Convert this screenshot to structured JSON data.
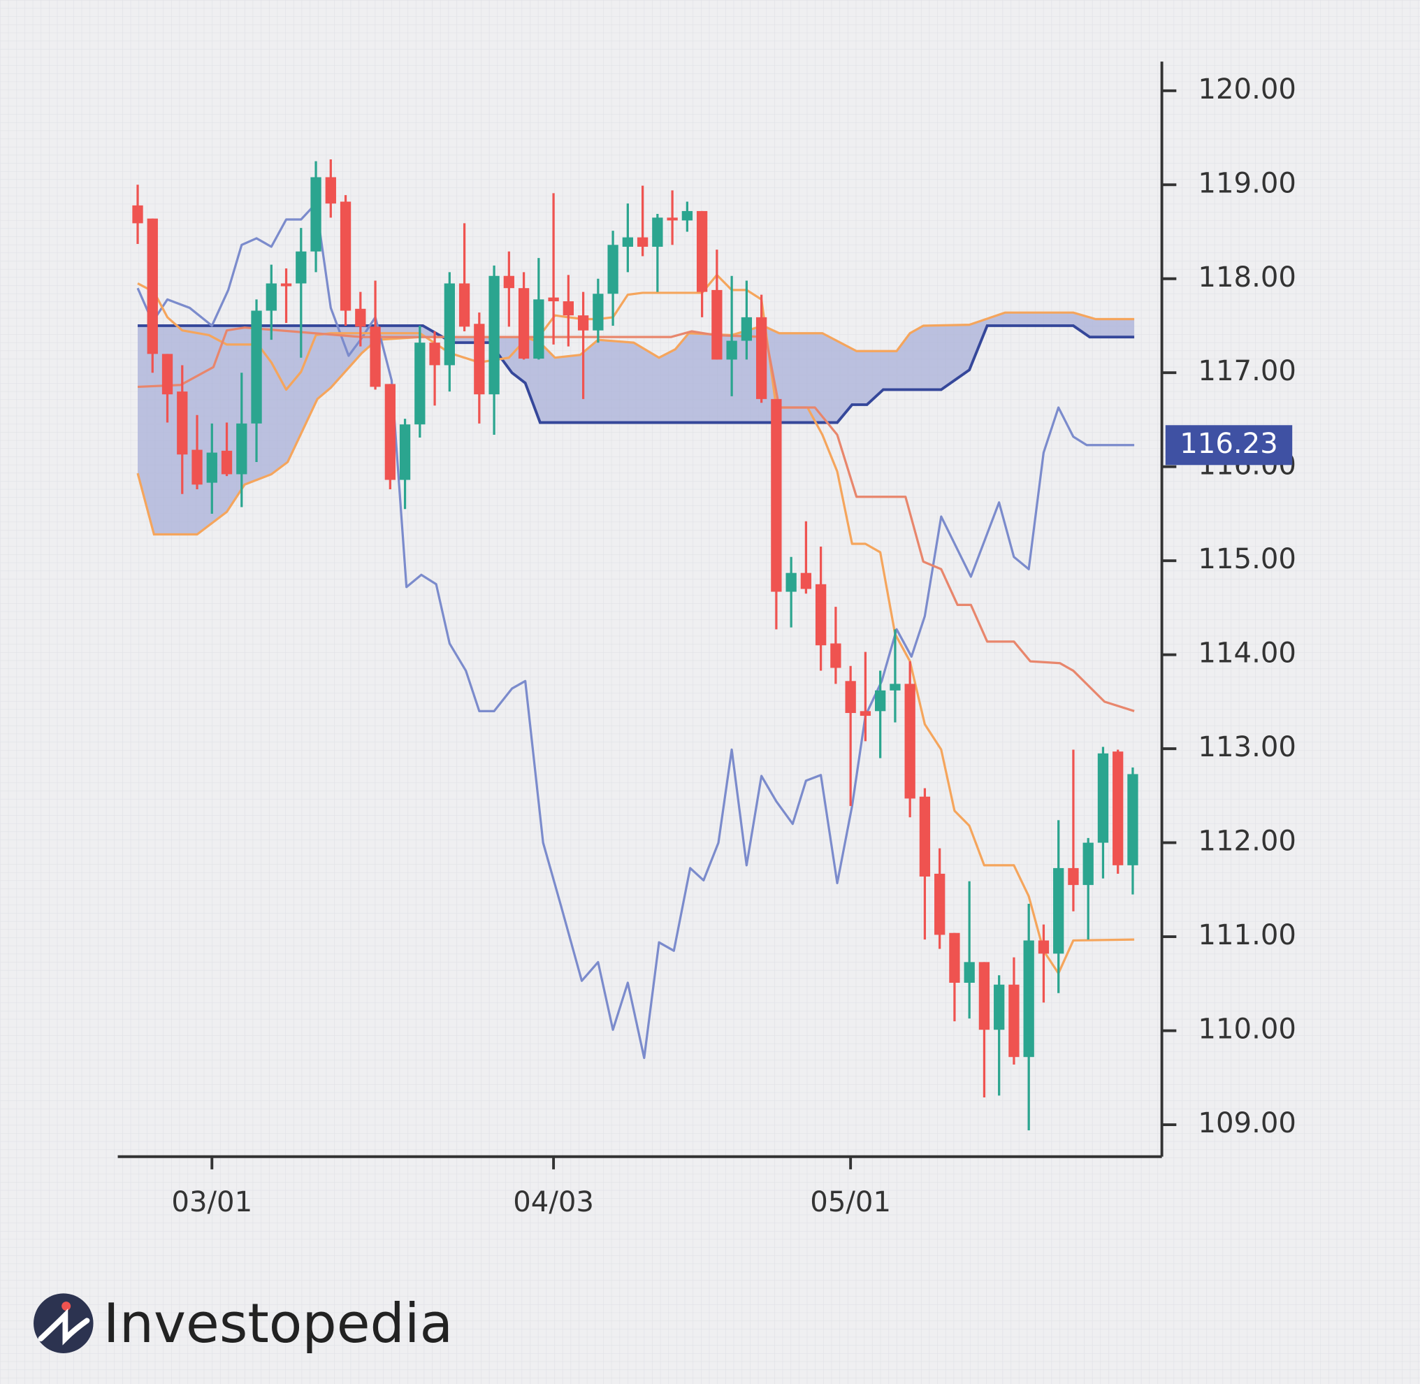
{
  "chart_data": {
    "type": "candlestick",
    "x": [
      0,
      1,
      2,
      3,
      4,
      5,
      6,
      7,
      8,
      9,
      10,
      11,
      12,
      13,
      14,
      15,
      16,
      17,
      18,
      19,
      20,
      21,
      22,
      23,
      24,
      25,
      26,
      27,
      28,
      29,
      30,
      31,
      32,
      33,
      34,
      35,
      36,
      37,
      38,
      39,
      40,
      41,
      42,
      43,
      44,
      45,
      46,
      47,
      48,
      49,
      50,
      51,
      52,
      53,
      54,
      55,
      56,
      57,
      58,
      59,
      60,
      61,
      62,
      63,
      64,
      65,
      66,
      67
    ],
    "open": [
      118.78,
      118.64,
      117.2,
      116.8,
      116.18,
      115.83,
      116.17,
      115.92,
      116.46,
      117.66,
      117.95,
      117.95,
      118.29,
      119.08,
      118.82,
      117.68,
      117.49,
      116.88,
      115.86,
      116.45,
      117.32,
      117.08,
      117.95,
      117.52,
      116.77,
      118.03,
      117.9,
      117.15,
      117.8,
      117.76,
      117.61,
      117.45,
      117.84,
      118.34,
      118.44,
      118.34,
      118.65,
      118.62,
      118.72,
      117.88,
      117.14,
      117.34,
      117.59,
      116.72,
      114.67,
      114.87,
      114.75,
      114.12,
      113.72,
      113.4,
      113.4,
      113.62,
      113.69,
      112.49,
      111.67,
      111.04,
      110.51,
      110.73,
      110.01,
      110.49,
      109.72,
      110.96,
      110.82,
      111.73,
      111.55,
      112.0,
      112.97,
      111.76
    ],
    "high": [
      119.0,
      118.64,
      117.2,
      117.08,
      116.55,
      116.46,
      116.47,
      117.0,
      117.78,
      118.15,
      118.11,
      118.54,
      119.25,
      119.27,
      118.89,
      117.86,
      117.98,
      116.88,
      116.51,
      117.5,
      117.44,
      118.07,
      118.59,
      117.64,
      118.14,
      118.29,
      118.07,
      118.22,
      118.91,
      118.04,
      117.86,
      118.0,
      118.51,
      118.8,
      118.99,
      118.69,
      118.94,
      118.82,
      118.72,
      118.31,
      118.03,
      117.98,
      117.83,
      116.72,
      115.04,
      115.42,
      115.15,
      114.51,
      113.88,
      114.03,
      113.83,
      114.27,
      113.93,
      112.58,
      111.94,
      111.04,
      111.59,
      110.73,
      110.59,
      110.78,
      111.35,
      111.13,
      112.24,
      112.99,
      112.05,
      113.02,
      112.99,
      112.8
    ],
    "low": [
      118.37,
      117.0,
      116.47,
      115.71,
      115.76,
      115.5,
      115.9,
      115.57,
      116.05,
      117.35,
      117.53,
      117.16,
      118.07,
      118.65,
      117.5,
      117.28,
      116.82,
      115.76,
      115.55,
      116.31,
      116.65,
      116.8,
      117.44,
      116.46,
      116.34,
      117.49,
      117.14,
      117.14,
      117.3,
      117.28,
      116.72,
      117.32,
      117.5,
      118.07,
      118.24,
      117.86,
      118.36,
      118.5,
      117.59,
      117.14,
      116.75,
      117.14,
      116.68,
      114.27,
      114.29,
      114.65,
      113.83,
      113.69,
      112.39,
      113.08,
      112.9,
      113.28,
      112.27,
      110.97,
      110.87,
      110.1,
      110.13,
      109.29,
      109.31,
      109.64,
      108.94,
      110.3,
      110.4,
      111.27,
      110.97,
      111.62,
      111.67,
      111.45
    ],
    "close": [
      118.59,
      117.2,
      116.77,
      116.13,
      115.81,
      116.15,
      115.92,
      116.46,
      117.66,
      117.95,
      117.92,
      118.29,
      119.08,
      118.8,
      117.66,
      117.49,
      116.85,
      115.86,
      116.45,
      117.32,
      117.08,
      117.95,
      117.49,
      116.77,
      118.03,
      117.9,
      117.15,
      117.78,
      117.76,
      117.61,
      117.45,
      117.84,
      118.36,
      118.44,
      118.34,
      118.65,
      118.62,
      118.72,
      117.86,
      117.14,
      117.34,
      117.59,
      116.72,
      114.67,
      114.87,
      114.7,
      114.1,
      113.86,
      113.38,
      113.35,
      113.62,
      113.69,
      112.47,
      111.64,
      111.02,
      110.51,
      110.73,
      110.01,
      110.49,
      109.72,
      110.96,
      110.82,
      111.73,
      111.55,
      112.0,
      112.95,
      111.76,
      112.73
    ],
    "up_color": "#2ba58f",
    "down_color": "#ef5350",
    "cloud": {
      "fill": "#aab0d8",
      "span_a": {
        "color": "#f5a55c",
        "x": [
          0,
          1.1,
          4,
          6,
          7.2,
          9,
          10.1,
          12.1,
          13,
          15.1,
          16.1,
          19.1,
          26.1,
          27.1,
          28.1,
          29.8,
          31,
          33.4,
          35.1,
          36.2,
          37.1,
          40,
          42.1,
          43.2,
          46.1,
          48.4,
          51.1,
          52,
          52.9,
          56,
          58.4,
          63,
          64.5,
          67.1
        ],
        "values": [
          115.93,
          115.28,
          115.28,
          115.52,
          115.81,
          115.92,
          116.05,
          116.72,
          116.84,
          117.21,
          117.35,
          117.38,
          117.38,
          117.32,
          117.16,
          117.19,
          117.35,
          117.32,
          117.16,
          117.25,
          117.42,
          117.4,
          117.5,
          117.42,
          117.42,
          117.23,
          117.23,
          117.42,
          117.5,
          117.51,
          117.64,
          117.64,
          117.57,
          117.57
        ]
      },
      "span_b": {
        "color": "#35479a",
        "x": [
          0,
          19.2,
          21.2,
          23.7,
          25.2,
          26.1,
          27.1,
          47.1,
          48.1,
          49.1,
          50.2,
          54.1,
          56,
          57.2,
          63,
          64.1,
          67.1
        ],
        "values": [
          117.5,
          117.5,
          117.32,
          117.32,
          117.0,
          116.89,
          116.47,
          116.47,
          116.66,
          116.66,
          116.82,
          116.82,
          117.03,
          117.5,
          117.5,
          117.38,
          117.38
        ]
      }
    },
    "lines": [
      {
        "color": "#7b8bcc",
        "x": [
          0,
          1,
          2,
          3.5,
          5,
          6.1,
          7,
          8,
          9,
          10,
          11,
          12,
          13,
          14.2,
          15,
          16,
          17.1,
          18.1,
          19.1,
          20.1,
          21,
          22.1,
          23,
          24,
          25.2,
          26.1,
          27.3,
          28.5,
          29.9,
          31,
          32,
          33,
          34.1,
          35.1,
          36.1,
          37.2,
          38.1,
          39.1,
          40,
          41,
          42,
          43,
          44.1,
          45,
          46,
          47.1,
          48.1,
          49,
          50.1,
          51.1,
          52.1,
          53,
          54.1,
          56.1,
          58,
          59,
          60,
          61,
          62,
          63,
          63.9,
          67.1
        ],
        "values": [
          117.9,
          117.54,
          117.78,
          117.69,
          117.5,
          117.88,
          118.36,
          118.43,
          118.34,
          118.63,
          118.63,
          118.8,
          117.69,
          117.18,
          117.35,
          117.59,
          116.92,
          114.72,
          114.85,
          114.75,
          114.12,
          113.83,
          113.4,
          113.4,
          113.64,
          113.72,
          112.0,
          111.33,
          110.53,
          110.73,
          110.01,
          110.51,
          109.71,
          110.94,
          110.85,
          111.73,
          111.6,
          112.0,
          112.99,
          111.76,
          112.71,
          112.44,
          112.2,
          112.66,
          112.72,
          111.57,
          112.39,
          113.35,
          113.72,
          114.27,
          113.98,
          114.41,
          115.47,
          114.83,
          115.62,
          115.04,
          114.91,
          116.15,
          116.63,
          116.32,
          116.23,
          116.23
        ]
      },
      {
        "color": "#f5a55c",
        "x": [
          0,
          1.1,
          2,
          3,
          4.8,
          6,
          8.1,
          9,
          10,
          11,
          12,
          13,
          15,
          19,
          21,
          23,
          25,
          26.1,
          27.1,
          28.1,
          29,
          30,
          31,
          32,
          33,
          34,
          38,
          39,
          40,
          41,
          42,
          43,
          45.1,
          46.1,
          47.1,
          48.1,
          49,
          50,
          51,
          52,
          53,
          54.1,
          55,
          56,
          57,
          59,
          60,
          61,
          62,
          63,
          67.1
        ],
        "values": [
          117.95,
          117.86,
          117.59,
          117.45,
          117.4,
          117.3,
          117.3,
          117.11,
          116.82,
          117.01,
          117.4,
          117.42,
          117.42,
          117.42,
          117.21,
          117.11,
          117.16,
          117.35,
          117.4,
          117.61,
          117.59,
          117.57,
          117.57,
          117.59,
          117.83,
          117.85,
          117.85,
          118.04,
          117.88,
          117.88,
          117.78,
          116.63,
          116.63,
          116.34,
          115.95,
          115.18,
          115.18,
          115.09,
          114.22,
          113.93,
          113.26,
          112.99,
          112.34,
          112.18,
          111.76,
          111.76,
          111.43,
          110.85,
          110.61,
          110.96,
          110.97
        ]
      },
      {
        "color": "#e8866c",
        "x": [
          0,
          2.9,
          5.1,
          6,
          7.2,
          15.1,
          35.9,
          37.3,
          38.9,
          42.3,
          43.2,
          45.6,
          47.1,
          48.4,
          51.7,
          52.9,
          54.1,
          55.2,
          56.1,
          57.2,
          59,
          60.1,
          62.1,
          63,
          65.1,
          67.1
        ],
        "values": [
          116.85,
          116.87,
          117.06,
          117.45,
          117.48,
          117.38,
          117.38,
          117.44,
          117.4,
          117.38,
          116.63,
          116.63,
          116.34,
          115.68,
          115.68,
          114.99,
          114.91,
          114.53,
          114.53,
          114.14,
          114.14,
          113.93,
          113.91,
          113.83,
          113.5,
          113.4
        ]
      }
    ],
    "last_price": 116.23,
    "last_price_color": "#3f51a3",
    "xlim": [
      -1.34,
      68.96
    ],
    "ylim": [
      108.66,
      120.31
    ],
    "xticks": [
      {
        "value": 5,
        "label": "03/01"
      },
      {
        "value": 28,
        "label": "04/03"
      },
      {
        "value": 48,
        "label": "05/01"
      }
    ],
    "yticks": [
      {
        "value": 109,
        "label": "109.00"
      },
      {
        "value": 110,
        "label": "110.00"
      },
      {
        "value": 111,
        "label": "111.00"
      },
      {
        "value": 112,
        "label": "112.00"
      },
      {
        "value": 113,
        "label": "113.00"
      },
      {
        "value": 114,
        "label": "114.00"
      },
      {
        "value": 115,
        "label": "115.00"
      },
      {
        "value": 116,
        "label": "116.00"
      },
      {
        "value": 117,
        "label": "117.00"
      },
      {
        "value": 118,
        "label": "118.00"
      },
      {
        "value": 119,
        "label": "119.00"
      },
      {
        "value": 120,
        "label": "120.00"
      }
    ]
  },
  "brand": "Investopedia"
}
